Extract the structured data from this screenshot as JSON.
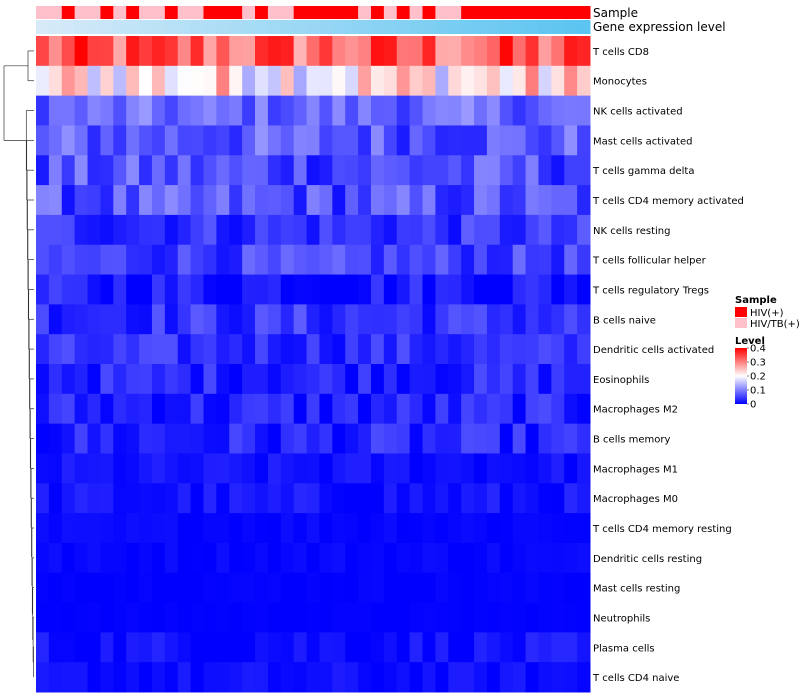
{
  "chart_data": {
    "type": "heatmap",
    "title": "",
    "annotation_tracks": [
      {
        "name": "Sample",
        "type": "categorical"
      },
      {
        "name": "Gene expression level",
        "type": "continuous"
      }
    ],
    "sample_groups": [
      1,
      1,
      0,
      1,
      1,
      0,
      1,
      0,
      1,
      1,
      0,
      1,
      1,
      0,
      0,
      0,
      1,
      0,
      1,
      1,
      0,
      0,
      0,
      0,
      0,
      1,
      0,
      1,
      0,
      1,
      0,
      1,
      1,
      0,
      0,
      0,
      0,
      0,
      0,
      0,
      0,
      0,
      0
    ],
    "row_labels": [
      "T cells CD8",
      "Monocytes",
      "NK cells activated",
      "Mast cells activated",
      "T cells gamma delta",
      "T cells CD4 memory activated",
      "NK cells resting",
      "T cells follicular helper",
      "T cells regulatory  Tregs",
      "B cells naive",
      "Dendritic cells activated",
      "Eosinophils",
      "Macrophages M2",
      "B cells memory",
      "Macrophages M1",
      "Macrophages M0",
      "T cells CD4 memory resting",
      "Dendritic cells resting",
      "Mast cells resting",
      "Neutrophils",
      "Plasma cells",
      "T cells CD4 naive"
    ],
    "n_samples": 43,
    "row_base_values": [
      0.32,
      0.22,
      0.08,
      0.07,
      0.06,
      0.06,
      0.04,
      0.05,
      0.02,
      0.04,
      0.035,
      0.03,
      0.025,
      0.025,
      0.012,
      0.012,
      0.005,
      0.004,
      0.002,
      0.001,
      0.012,
      0.008
    ],
    "row_variation": [
      0.08,
      0.09,
      0.04,
      0.05,
      0.05,
      0.05,
      0.035,
      0.035,
      0.035,
      0.035,
      0.03,
      0.03,
      0.035,
      0.035,
      0.015,
      0.02,
      0.008,
      0.008,
      0.004,
      0.002,
      0.02,
      0.015
    ],
    "dendrogram_merge_order": [
      "T cells CD8 + Monocytes",
      "NK cells activated ... T cells CD4 naive",
      "root"
    ],
    "legends": {
      "sample": {
        "title": "Sample",
        "entries": [
          {
            "label": "HIV(+)",
            "color": "#ff0000"
          },
          {
            "label": "HIV/TB(+)",
            "color": "#ffc0cb"
          }
        ]
      },
      "level": {
        "title": "Level",
        "ticks": [
          "0.4",
          "0.3",
          "0.2",
          "0.1",
          "0"
        ],
        "tick_values": [
          0.4,
          0.3,
          0.2,
          0.1,
          0
        ],
        "range": [
          0,
          0.4
        ]
      }
    },
    "colors": {
      "low": "#0000ff",
      "mid": "#ffffff",
      "high": "#ff0000",
      "expr_low": "#d6eaf8",
      "expr_high": "#5bc4f0"
    }
  }
}
